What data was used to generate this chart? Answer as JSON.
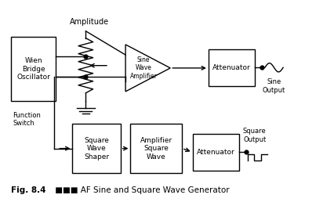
{
  "bg_color": "#ffffff",
  "fig_width": 4.26,
  "fig_height": 2.58,
  "dpi": 100,
  "text_color": "#000000",
  "line_color": "#000000",
  "caption_bold": "Fig. 8.4",
  "caption_rest": " ■■■ AF Sine and Square Wave Generator",
  "wien_label": "Wien\nBridge\nOscillator",
  "sine_amp_label": "Sine\nWave\nAmplifier",
  "attenuator_label": "Attenuator",
  "sq_shaper_label": "Square\nWave\nShaper",
  "amp_sq_label": "Amplifier\nSquare\nWave",
  "amplitude_label": "Amplitude",
  "function_switch_label": "Function\nSwitch",
  "sine_output_label": "Sine\nOutput",
  "square_output_label": "Square\nOutput"
}
